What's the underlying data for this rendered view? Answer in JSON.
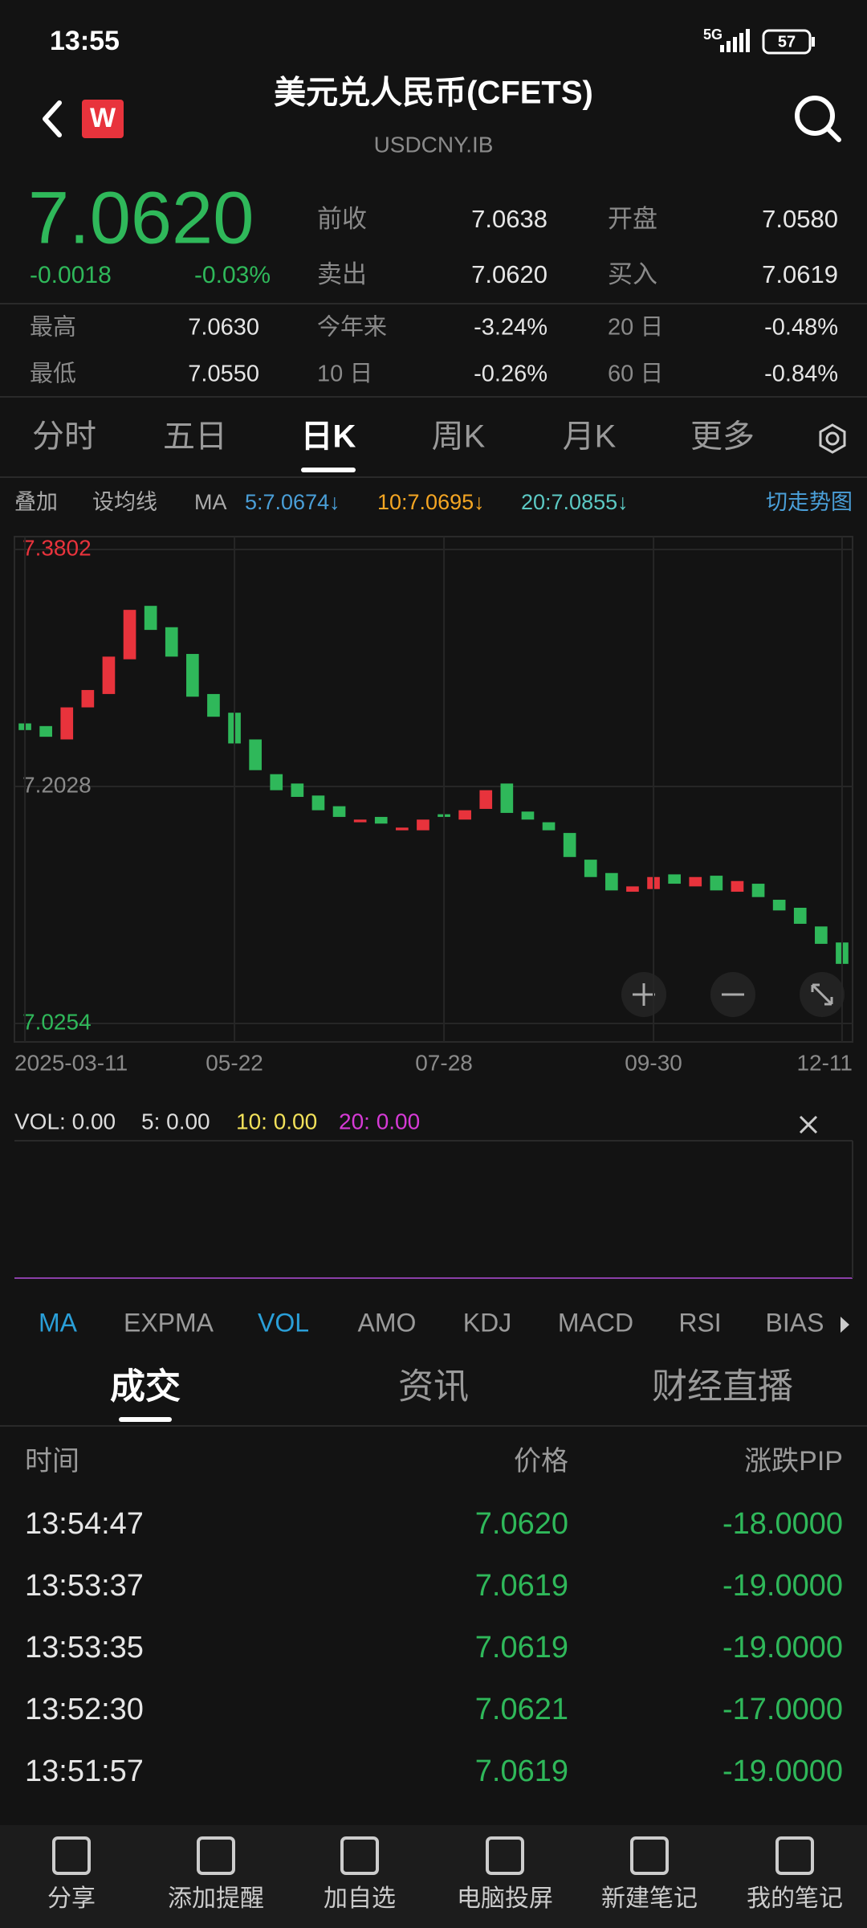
{
  "status_bar": {
    "time": "13:55",
    "network": "5G",
    "battery": "57"
  },
  "header": {
    "title": "美元兑人民币(CFETS)",
    "subtitle": "USDCNY.IB",
    "badge": "W"
  },
  "quote": {
    "price": "7.0620",
    "change": "-0.0018",
    "change_pct": "-0.03%",
    "fields": [
      [
        "前收",
        "7.0638"
      ],
      [
        "开盘",
        "7.0580"
      ],
      [
        "卖出",
        "7.0620"
      ],
      [
        "买入",
        "7.0619"
      ]
    ],
    "stats": [
      [
        "最高",
        "7.0630"
      ],
      [
        "今年来",
        "-3.24%"
      ],
      [
        "20 日",
        "-0.48%"
      ],
      [
        "最低",
        "7.0550"
      ],
      [
        "10 日",
        "-0.26%"
      ],
      [
        "60 日",
        "-0.84%"
      ]
    ]
  },
  "period_tabs": {
    "items": [
      "分时",
      "五日",
      "日K",
      "周K",
      "月K",
      "更多"
    ],
    "active": 2
  },
  "toolbar": {
    "items": [
      "叠加",
      "设均线",
      "MA"
    ],
    "ma": [
      {
        "text": "5:7.0674↓",
        "color": "#4a9fd8"
      },
      {
        "text": "10:7.0695↓",
        "color": "#f5a623"
      },
      {
        "text": "20:7.0855↓",
        "color": "#5cc9c4"
      }
    ],
    "switch": "切走势图"
  },
  "chart_data": {
    "type": "candlestick",
    "categories": [
      "2025-03-11",
      null,
      null,
      null,
      null,
      null,
      null,
      null,
      null,
      null,
      "05-22",
      null,
      null,
      null,
      null,
      null,
      null,
      null,
      null,
      null,
      "07-28",
      null,
      null,
      null,
      null,
      null,
      null,
      null,
      null,
      null,
      "09-30",
      null,
      null,
      null,
      null,
      null,
      null,
      null,
      null,
      "12-11"
    ],
    "open": [
      7.25,
      7.248,
      7.238,
      7.262,
      7.272,
      7.298,
      7.338,
      7.322,
      7.302,
      7.272,
      7.258,
      7.238,
      7.212,
      7.205,
      7.196,
      7.188,
      7.176,
      7.18,
      7.17,
      7.17,
      7.182,
      7.178,
      7.186,
      7.205,
      7.184,
      7.176,
      7.168,
      7.148,
      7.138,
      7.124,
      7.126,
      7.137,
      7.128,
      7.136,
      7.124,
      7.13,
      7.118,
      7.112,
      7.098,
      7.086
    ],
    "close": [
      7.245,
      7.24,
      7.262,
      7.275,
      7.3,
      7.335,
      7.32,
      7.3,
      7.27,
      7.255,
      7.235,
      7.215,
      7.2,
      7.195,
      7.185,
      7.18,
      7.178,
      7.175,
      7.172,
      7.178,
      7.18,
      7.185,
      7.2,
      7.183,
      7.178,
      7.17,
      7.15,
      7.135,
      7.125,
      7.128,
      7.135,
      7.13,
      7.135,
      7.125,
      7.132,
      7.12,
      7.11,
      7.1,
      7.085,
      7.07
    ],
    "ylim": [
      7.0254,
      7.3802
    ],
    "yticks": [
      7.3802,
      7.2028,
      7.0254
    ],
    "up_color": "#e8333c",
    "down_color": "#2fb85a",
    "grid": true
  },
  "volume": {
    "items": [
      {
        "text": "VOL: 0.00",
        "color": "#dddddd"
      },
      {
        "text": "5: 0.00",
        "color": "#dddddd"
      },
      {
        "text": "10: 0.00",
        "color": "#f2e15a"
      },
      {
        "text": "20: 0.00",
        "color": "#d63ad6"
      }
    ]
  },
  "indicators": {
    "items": [
      "MA",
      "EXPMA",
      "VOL",
      "AMO",
      "KDJ",
      "MACD",
      "RSI",
      "BIAS"
    ],
    "active": [
      0,
      2
    ]
  },
  "info_tabs": {
    "items": [
      "成交",
      "资讯",
      "财经直播"
    ],
    "active": 0
  },
  "trades": {
    "columns": [
      "时间",
      "价格",
      "涨跌PIP"
    ],
    "rows": [
      [
        "13:54:47",
        "7.0620",
        "-18.0000"
      ],
      [
        "13:53:37",
        "7.0619",
        "-19.0000"
      ],
      [
        "13:53:35",
        "7.0619",
        "-19.0000"
      ],
      [
        "13:52:30",
        "7.0621",
        "-17.0000"
      ],
      [
        "13:51:57",
        "7.0619",
        "-19.0000"
      ]
    ]
  },
  "bottom_nav": {
    "items": [
      "分享",
      "添加提醒",
      "加自选",
      "电脑投屏",
      "新建笔记",
      "我的笔记"
    ]
  }
}
